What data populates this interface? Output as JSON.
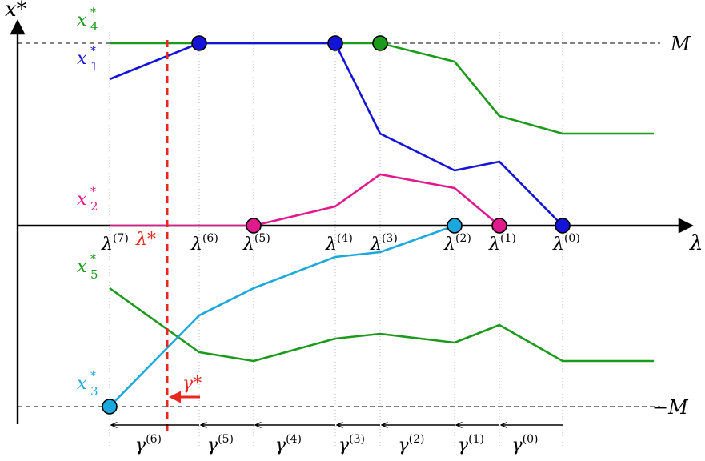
{
  "chart_data": {
    "type": "line",
    "axes": {
      "x_label": "λ",
      "y_label": "x*",
      "y_bound_top": "M",
      "y_bound_bottom": "−M"
    },
    "breakpoints": [
      {
        "label": "λ",
        "sup": "(7)"
      },
      {
        "label": "λ",
        "sup": "(6)"
      },
      {
        "label": "λ",
        "sup": "(5)"
      },
      {
        "label": "λ",
        "sup": "(4)"
      },
      {
        "label": "λ",
        "sup": "(3)"
      },
      {
        "label": "λ",
        "sup": "(2)"
      },
      {
        "label": "λ",
        "sup": "(1)"
      },
      {
        "label": "λ",
        "sup": "(0)"
      }
    ],
    "lambda_star": {
      "label": "λ*",
      "color": "#e8271e"
    },
    "gamma_star": {
      "label": "γ*",
      "color": "#e8271e"
    },
    "gamma_steps": [
      {
        "label": "γ",
        "sup": "(6)"
      },
      {
        "label": "γ",
        "sup": "(5)"
      },
      {
        "label": "γ",
        "sup": "(4)"
      },
      {
        "label": "γ",
        "sup": "(3)"
      },
      {
        "label": "γ",
        "sup": "(2)"
      },
      {
        "label": "γ",
        "sup": "(1)"
      },
      {
        "label": "γ",
        "sup": "(0)"
      }
    ],
    "series": [
      {
        "name": "x*4",
        "base": "x",
        "sub": "4",
        "color": "#1c9a1c"
      },
      {
        "name": "x*1",
        "base": "x",
        "sub": "1",
        "color": "#1414d8"
      },
      {
        "name": "x*2",
        "base": "x",
        "sub": "2",
        "color": "#e0198c"
      },
      {
        "name": "x*5",
        "base": "x",
        "sub": "5",
        "color": "#1c9a1c"
      },
      {
        "name": "x*3",
        "base": "x",
        "sub": "3",
        "color": "#1aa8de"
      }
    ]
  }
}
